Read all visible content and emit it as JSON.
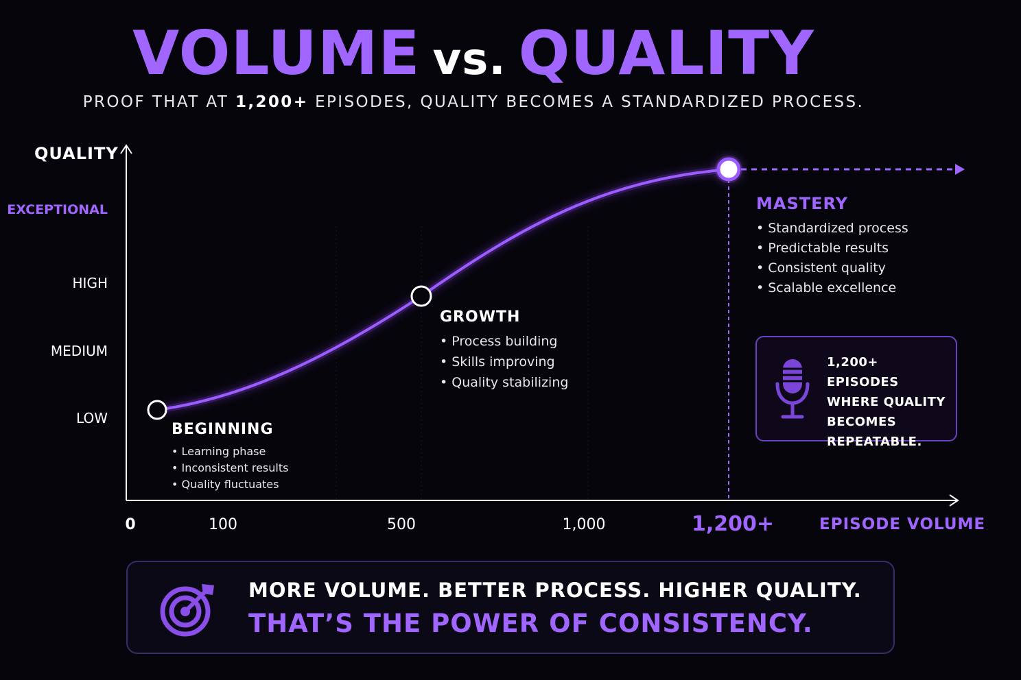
{
  "header": {
    "title_part1": "VOLUME",
    "title_vs": "vs.",
    "title_part2": "QUALITY",
    "subtitle_pre": "PROOF THAT AT ",
    "subtitle_bold": "1,200+",
    "subtitle_post": " EPISODES, QUALITY BECOMES A STANDARDIZED PROCESS."
  },
  "chart_data": {
    "type": "line",
    "ylabel": "QUALITY",
    "xlabel": "EPISODE VOLUME",
    "y_ticks": [
      "LOW",
      "MEDIUM",
      "HIGH",
      "EXCEPTIONAL"
    ],
    "x_ticks": [
      "0",
      "100",
      "500",
      "1,000",
      "1,200+"
    ],
    "curve": "s-curve rising from LOW to EXCEPTIONAL",
    "series": [
      {
        "values": [
          {
            "x": 20,
            "y": "LOW"
          },
          {
            "x": 550,
            "y": "HIGH"
          },
          {
            "x": 1200,
            "y": "EXCEPTIONAL"
          }
        ]
      }
    ],
    "annotations": [
      {
        "x": 1200,
        "label": "1,200+"
      }
    ],
    "colors": {
      "curve": "#9d5cff",
      "accent": "#a066ff",
      "axis": "#ffffff"
    }
  },
  "stages": {
    "beginning": {
      "title": "BEGINNING",
      "items": [
        "Learning phase",
        "Inconsistent results",
        "Quality fluctuates"
      ]
    },
    "growth": {
      "title": "GROWTH",
      "items": [
        "Process building",
        "Skills improving",
        "Quality stabilizing"
      ]
    },
    "mastery": {
      "title": "MASTERY",
      "items": [
        "Standardized process",
        "Predictable results",
        "Consistent quality",
        "Scalable excellence"
      ]
    }
  },
  "callout": {
    "icon": "microphone-icon",
    "line1": "1,200+ EPISODES",
    "line2": "WHERE QUALITY",
    "line3": "BECOMES",
    "line4": "REPEATABLE."
  },
  "footer": {
    "icon": "target-icon",
    "line1": "MORE VOLUME. BETTER PROCESS. HIGHER QUALITY.",
    "line2": "THAT’S THE POWER OF CONSISTENCY."
  }
}
